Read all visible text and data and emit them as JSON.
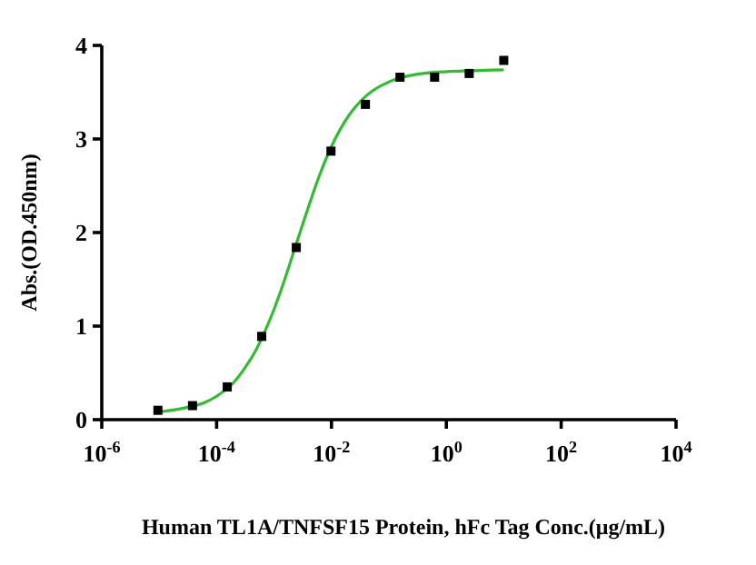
{
  "chart_data": {
    "type": "scatter",
    "xlabel": "Human TL1A/TNFSF15 Protein, hFc Tag Conc.(μg/mL)",
    "ylabel": "Abs.(OD.450nm)",
    "log": "x",
    "xlim": [
      1e-06,
      10000
    ],
    "xticks": [
      {
        "value": 1e-06,
        "label": "10$^{-6}$"
      },
      {
        "value": 0.0001,
        "label": "10$^{-4}$"
      },
      {
        "value": 0.01,
        "label": "10$^{-2}$"
      },
      {
        "value": 1,
        "label": "10$^{0}$"
      },
      {
        "value": 100,
        "label": "10$^{2}$"
      },
      {
        "value": 10000,
        "label": "10$^{4}$"
      }
    ],
    "ylim": [
      0,
      4
    ],
    "yticks": [
      0,
      1,
      2,
      3,
      4
    ],
    "series": [
      {
        "marker": "square",
        "color": "#000000",
        "x": [
          9.5e-06,
          3.8e-05,
          0.000153,
          0.00061,
          0.00244,
          0.0098,
          0.039,
          0.156,
          0.625,
          2.5,
          10
        ],
        "values": [
          0.1,
          0.15,
          0.35,
          0.89,
          1.84,
          2.87,
          3.37,
          3.66,
          3.66,
          3.7,
          3.84
        ]
      },
      {
        "type": "line",
        "marker": "none",
        "color": "#33bb33",
        "x": [
          9.5e-06,
          3e-05,
          6e-05,
          0.0001,
          0.0002,
          0.0003,
          0.0005,
          0.0007,
          0.001,
          0.0015,
          0.0025,
          0.004,
          0.006,
          0.01,
          0.02,
          0.04,
          0.1,
          0.3,
          1,
          3,
          10
        ],
        "values": [
          0.08,
          0.13,
          0.18,
          0.25,
          0.4,
          0.54,
          0.76,
          0.95,
          1.18,
          1.48,
          1.9,
          2.28,
          2.59,
          2.92,
          3.25,
          3.46,
          3.61,
          3.69,
          3.72,
          3.73,
          3.74
        ]
      }
    ]
  }
}
